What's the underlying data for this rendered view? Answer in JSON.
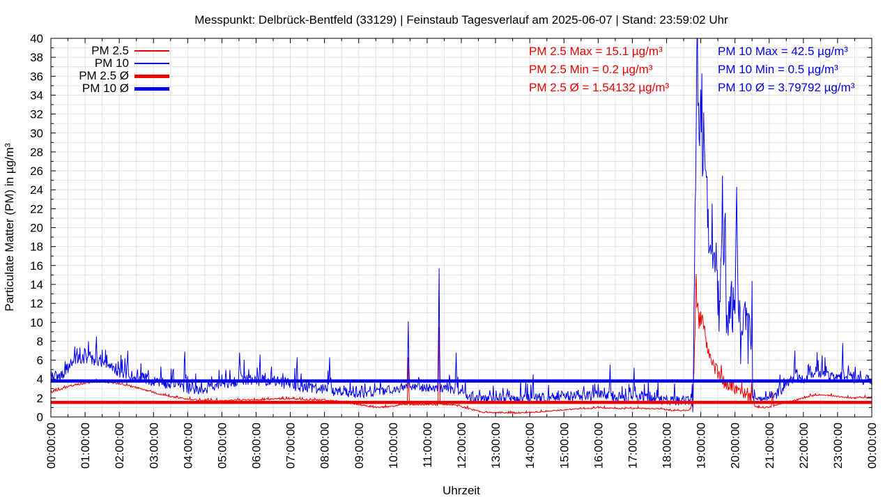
{
  "page_title": "Messpunkt: Delbrück-Bentfeld (33129) | Feinstaub Tagesverlauf am 2025-06-07 | Stand: 23:59:02 Uhr",
  "chart_data": {
    "type": "line",
    "title": "Messpunkt: Delbrück-Bentfeld (33129) | Feinstaub Tagesverlauf am 2025-06-07 | Stand: 23:59:02 Uhr",
    "xlabel": "Uhrzeit",
    "ylabel": "Particulate Matter (PM) in µg/m³",
    "ylim": [
      0,
      40
    ],
    "yticks": [
      0,
      2,
      4,
      6,
      8,
      10,
      12,
      14,
      16,
      18,
      20,
      22,
      24,
      26,
      28,
      30,
      32,
      34,
      36,
      38,
      40
    ],
    "y_minor_step": 1,
    "x_hours": 24,
    "xtick_labels": [
      "00:00:00",
      "01:00:00",
      "02:00:00",
      "03:00:00",
      "04:00:00",
      "05:00:00",
      "06:00:00",
      "07:00:00",
      "08:00:00",
      "09:00:00",
      "10:00:00",
      "11:00:00",
      "12:00:00",
      "13:00:00",
      "14:00:00",
      "15:00:00",
      "16:00:00",
      "17:00:00",
      "18:00:00",
      "19:00:00",
      "20:00:00",
      "21:00:00",
      "22:00:00",
      "23:00:00",
      "00:00:00"
    ],
    "x_minor_step_minutes": 30,
    "grid": {
      "show": true,
      "color": "#e0e0e0",
      "x_every_minutes": 30,
      "y_every": 1
    },
    "legend": {
      "position": "top-left",
      "entries": [
        {
          "label": "PM 2.5",
          "color": "#ee0000",
          "thickness": 2
        },
        {
          "label": "PM 10",
          "color": "#0000ee",
          "thickness": 2
        },
        {
          "label": "PM 2.5 Ø",
          "color": "#ee0000",
          "thickness": 5
        },
        {
          "label": "PM 10 Ø",
          "color": "#0000ee",
          "thickness": 5
        }
      ]
    },
    "stats": {
      "pm25": {
        "max": 15.1,
        "min": 0.2,
        "avg": 1.54132,
        "unit": "µg/m³"
      },
      "pm10": {
        "max": 42.5,
        "min": 0.5,
        "avg": 3.79792,
        "unit": "µg/m³"
      },
      "left_lines": [
        "PM 2.5 Max = 15.1 µg/m³",
        "PM 2.5 Min = 0.2 µg/m³",
        "PM 2.5 Ø = 1.54132 µg/m³"
      ],
      "right_lines": [
        "PM 10 Max = 42.5 µg/m³",
        "PM 10 Min = 0.5 µg/m³",
        "PM 10 Ø = 3.79792 µg/m³"
      ]
    },
    "series": [
      {
        "name": "PM 2.5",
        "type": "noisy-line",
        "color": "#ee0000",
        "width": 1,
        "seed": 1234,
        "min_clip": 0.2,
        "max_clip": 15.1,
        "keypoints": [
          [
            0,
            2.6
          ],
          [
            0.3,
            2.9
          ],
          [
            0.6,
            3.3
          ],
          [
            0.9,
            3.5
          ],
          [
            1.2,
            3.7
          ],
          [
            1.6,
            3.7
          ],
          [
            2.0,
            3.5
          ],
          [
            2.4,
            3.2
          ],
          [
            2.8,
            2.8
          ],
          [
            3.2,
            2.4
          ],
          [
            3.6,
            2.1
          ],
          [
            4.0,
            1.9
          ],
          [
            4.5,
            1.7
          ],
          [
            5.0,
            1.7
          ],
          [
            5.5,
            1.8
          ],
          [
            6.0,
            1.8
          ],
          [
            6.5,
            1.9
          ],
          [
            7.0,
            1.9
          ],
          [
            7.5,
            1.8
          ],
          [
            8.0,
            1.8
          ],
          [
            8.5,
            1.6
          ],
          [
            9.0,
            1.3
          ],
          [
            9.5,
            1.0
          ],
          [
            10.0,
            1.1
          ],
          [
            10.3,
            1.3
          ],
          [
            11.0,
            1.3
          ],
          [
            11.6,
            1.3
          ],
          [
            11.9,
            1.2
          ],
          [
            12.2,
            0.9
          ],
          [
            12.6,
            0.5
          ],
          [
            13.0,
            0.45
          ],
          [
            13.6,
            0.4
          ],
          [
            14.2,
            0.5
          ],
          [
            14.8,
            0.7
          ],
          [
            15.4,
            0.85
          ],
          [
            16.0,
            0.95
          ],
          [
            16.6,
            0.9
          ],
          [
            17.2,
            0.9
          ],
          [
            17.8,
            0.85
          ],
          [
            18.3,
            0.65
          ],
          [
            18.6,
            0.7
          ],
          [
            18.75,
            0.9
          ],
          [
            18.8,
            5.0
          ],
          [
            18.87,
            13.0
          ],
          [
            18.95,
            9.5
          ],
          [
            19.05,
            10.5
          ],
          [
            19.15,
            8.0
          ],
          [
            19.3,
            6.0
          ],
          [
            19.5,
            4.8
          ],
          [
            19.7,
            3.6
          ],
          [
            19.9,
            3.3
          ],
          [
            20.1,
            2.9
          ],
          [
            20.3,
            2.5
          ],
          [
            20.5,
            2.0
          ],
          [
            20.58,
            1.1
          ],
          [
            20.8,
            0.95
          ],
          [
            21.0,
            1.05
          ],
          [
            21.3,
            1.35
          ],
          [
            21.6,
            1.6
          ],
          [
            21.9,
            1.9
          ],
          [
            22.2,
            2.2
          ],
          [
            22.5,
            2.35
          ],
          [
            22.8,
            2.25
          ],
          [
            23.1,
            2.1
          ],
          [
            23.5,
            2.0
          ],
          [
            24,
            2.1
          ]
        ],
        "noise": [
          [
            0,
            2.5,
            0.16
          ],
          [
            2.5,
            9.5,
            0.13
          ],
          [
            9.5,
            12.2,
            0.13
          ],
          [
            12.2,
            18.7,
            0.1
          ],
          [
            18.7,
            20.55,
            1.3
          ],
          [
            20.55,
            24,
            0.12
          ]
        ],
        "spikes": [
          [
            10.45,
            6.3
          ],
          [
            11.35,
            9.5
          ],
          [
            18.87,
            15.1
          ],
          [
            21.1,
            2.6
          ]
        ]
      },
      {
        "name": "PM 10",
        "type": "noisy-line",
        "color": "#0000ee",
        "width": 1,
        "seed": 99,
        "min_clip": 0.5,
        "max_clip": 42.5,
        "keypoints": [
          [
            0,
            4.6
          ],
          [
            0.2,
            4.0
          ],
          [
            0.5,
            5.2
          ],
          [
            0.8,
            6.2
          ],
          [
            1.1,
            6.3
          ],
          [
            1.4,
            5.8
          ],
          [
            1.7,
            5.2
          ],
          [
            2.0,
            4.7
          ],
          [
            2.4,
            4.3
          ],
          [
            2.8,
            4.0
          ],
          [
            3.2,
            3.7
          ],
          [
            3.6,
            3.4
          ],
          [
            4.0,
            3.0
          ],
          [
            4.5,
            2.9
          ],
          [
            5.0,
            3.4
          ],
          [
            5.5,
            3.8
          ],
          [
            6.0,
            3.9
          ],
          [
            6.5,
            3.8
          ],
          [
            7.0,
            3.4
          ],
          [
            7.5,
            3.1
          ],
          [
            8.0,
            3.0
          ],
          [
            8.5,
            2.6
          ],
          [
            9.0,
            2.4
          ],
          [
            9.5,
            2.6
          ],
          [
            10.0,
            2.9
          ],
          [
            10.5,
            3.2
          ],
          [
            11.0,
            3.1
          ],
          [
            11.6,
            3.0
          ],
          [
            11.9,
            2.7
          ],
          [
            12.2,
            2.1
          ],
          [
            12.6,
            1.8
          ],
          [
            13.5,
            1.9
          ],
          [
            14.5,
            2.0
          ],
          [
            15.5,
            2.2
          ],
          [
            16.2,
            2.3
          ],
          [
            17.0,
            2.0
          ],
          [
            18.0,
            1.8
          ],
          [
            18.7,
            1.7
          ],
          [
            18.78,
            2.5
          ],
          [
            18.84,
            25
          ],
          [
            18.9,
            36
          ],
          [
            18.95,
            30
          ],
          [
            19.0,
            33
          ],
          [
            19.05,
            28
          ],
          [
            19.1,
            31
          ],
          [
            19.2,
            21
          ],
          [
            19.3,
            15
          ],
          [
            19.42,
            17
          ],
          [
            19.55,
            11
          ],
          [
            19.65,
            20
          ],
          [
            19.75,
            10
          ],
          [
            19.85,
            13
          ],
          [
            19.95,
            8
          ],
          [
            20.05,
            18
          ],
          [
            20.15,
            8
          ],
          [
            20.25,
            11
          ],
          [
            20.35,
            8
          ],
          [
            20.45,
            9
          ],
          [
            20.52,
            4
          ],
          [
            20.6,
            2.2
          ],
          [
            20.8,
            1.8
          ],
          [
            21.0,
            2.1
          ],
          [
            21.2,
            2.4
          ],
          [
            21.5,
            3.4
          ],
          [
            21.8,
            4.2
          ],
          [
            22.1,
            3.9
          ],
          [
            22.4,
            4.6
          ],
          [
            22.7,
            4.3
          ],
          [
            23.0,
            4.1
          ],
          [
            23.3,
            4.4
          ],
          [
            23.6,
            3.9
          ],
          [
            24,
            3.9
          ]
        ],
        "noise": [
          [
            0,
            1.6,
            1.1
          ],
          [
            1.6,
            8.3,
            1.0
          ],
          [
            8.3,
            12.1,
            0.75
          ],
          [
            12.1,
            18.7,
            0.9
          ],
          [
            18.7,
            20.55,
            5.0
          ],
          [
            20.55,
            21.2,
            0.5
          ],
          [
            21.2,
            24,
            0.95
          ]
        ],
        "spikes": [
          [
            1.33,
            8.5
          ],
          [
            2.25,
            7.0
          ],
          [
            3.92,
            6.9
          ],
          [
            5.52,
            6.8
          ],
          [
            6.12,
            6.6
          ],
          [
            7.2,
            6.3
          ],
          [
            8.15,
            6.3
          ],
          [
            10.45,
            10.1
          ],
          [
            11.35,
            15.7
          ],
          [
            11.85,
            6.8
          ],
          [
            14.1,
            4.5
          ],
          [
            16.35,
            5.5
          ],
          [
            17.05,
            5.2
          ],
          [
            18.9,
            42.5
          ],
          [
            19.63,
            25.5
          ],
          [
            20.05,
            24.3
          ],
          [
            21.75,
            7.0
          ],
          [
            22.55,
            6.5
          ],
          [
            23.15,
            7.8
          ]
        ]
      },
      {
        "name": "PM 2.5 Ø",
        "type": "hline",
        "color": "#ee0000",
        "width": 4.5,
        "value": 1.54132
      },
      {
        "name": "PM 10 Ø",
        "type": "hline",
        "color": "#0000ee",
        "width": 4.5,
        "value": 3.79792
      }
    ]
  }
}
